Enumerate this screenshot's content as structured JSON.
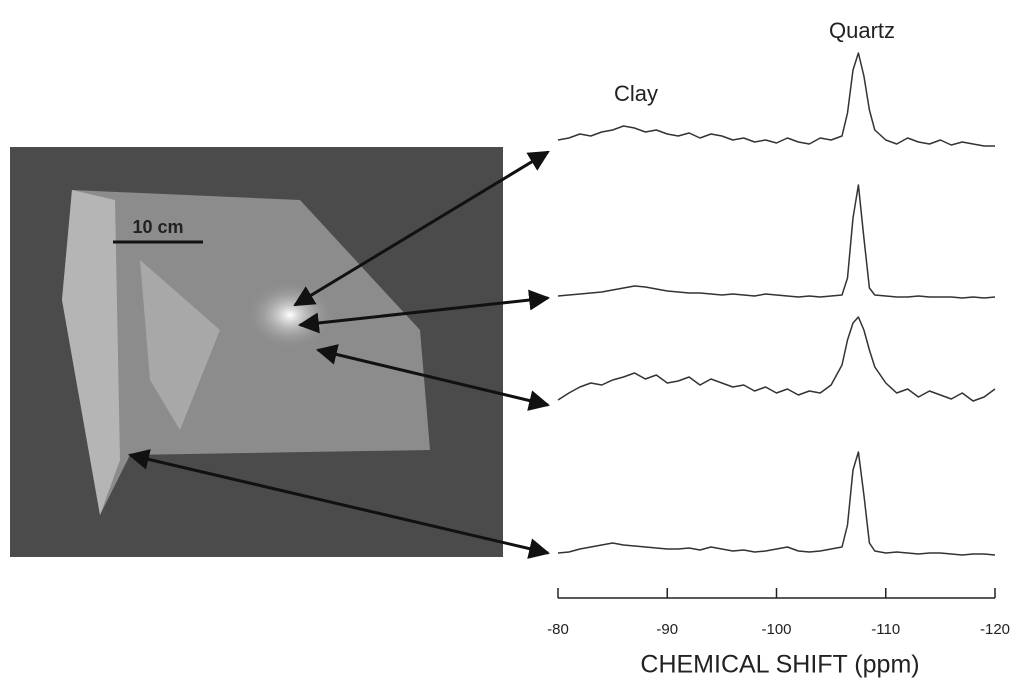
{
  "chart_data": {
    "type": "line",
    "annotations": {
      "quartz": "Quartz",
      "clay": "Clay",
      "scale_bar": "10 cm"
    },
    "x_label": "CHEMICAL SHIFT  (ppm)",
    "x": [
      -80,
      -81,
      -82,
      -83,
      -84,
      -85,
      -86,
      -87,
      -88,
      -89,
      -90,
      -91,
      -92,
      -93,
      -94,
      -95,
      -96,
      -97,
      -98,
      -99,
      -100,
      -101,
      -102,
      -103,
      -104,
      -105,
      -106,
      -106.5,
      -107,
      -107.5,
      -108,
      -108.5,
      -109,
      -110,
      -111,
      -112,
      -113,
      -114,
      -115,
      -116,
      -117,
      -118,
      -119,
      -120
    ],
    "xlim": [
      -80,
      -120
    ],
    "xticks": [
      -80,
      -90,
      -100,
      -110,
      -120
    ],
    "ylim": [
      0,
      120
    ],
    "series": [
      {
        "color": "#333333",
        "values": [
          8,
          10,
          14,
          12,
          16,
          18,
          22,
          20,
          16,
          18,
          14,
          12,
          15,
          10,
          14,
          12,
          8,
          10,
          6,
          8,
          5,
          10,
          6,
          4,
          10,
          8,
          12,
          35,
          78,
          95,
          72,
          38,
          18,
          8,
          4,
          10,
          6,
          4,
          8,
          3,
          6,
          4,
          2,
          2
        ]
      },
      {
        "color": "#333333",
        "values": [
          2,
          3,
          4,
          5,
          6,
          8,
          10,
          12,
          11,
          9,
          7,
          6,
          5,
          5,
          4,
          3,
          4,
          3,
          2,
          4,
          3,
          2,
          1,
          2,
          1,
          2,
          3,
          20,
          80,
          113,
          60,
          10,
          3,
          2,
          1,
          1,
          2,
          1,
          1,
          1,
          0,
          1,
          0,
          1
        ]
      },
      {
        "color": "#333333",
        "values": [
          5,
          12,
          18,
          22,
          20,
          25,
          28,
          32,
          26,
          30,
          22,
          24,
          28,
          20,
          26,
          22,
          18,
          20,
          14,
          18,
          12,
          16,
          10,
          14,
          12,
          20,
          40,
          65,
          82,
          88,
          75,
          55,
          38,
          22,
          12,
          16,
          8,
          14,
          10,
          6,
          12,
          4,
          8,
          16
        ]
      },
      {
        "color": "#333333",
        "values": [
          2,
          3,
          6,
          8,
          10,
          12,
          10,
          9,
          8,
          7,
          6,
          6,
          7,
          5,
          8,
          6,
          4,
          5,
          3,
          4,
          6,
          8,
          4,
          3,
          4,
          6,
          8,
          30,
          85,
          103,
          60,
          12,
          4,
          2,
          3,
          2,
          1,
          2,
          2,
          1,
          0,
          1,
          1,
          0
        ]
      }
    ]
  }
}
